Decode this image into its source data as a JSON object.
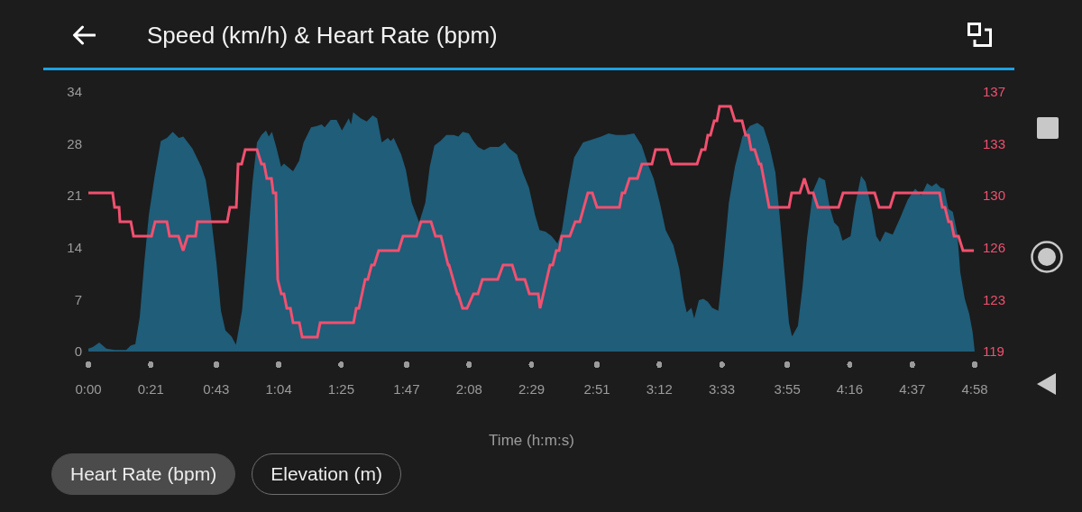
{
  "chart_data": {
    "type": "area",
    "title": "Speed (km/h) & Heart Rate (bpm)",
    "xlabel": "Time (h:m:s)",
    "xlim": [
      0,
      4.9667
    ],
    "xticks": [
      {
        "value": 0,
        "label": "0:00"
      },
      {
        "value": 0.35,
        "label": "0:21"
      },
      {
        "value": 0.7167,
        "label": "0:43"
      },
      {
        "value": 1.0667,
        "label": "1:04"
      },
      {
        "value": 1.4167,
        "label": "1:25"
      },
      {
        "value": 1.7833,
        "label": "1:47"
      },
      {
        "value": 2.1333,
        "label": "2:08"
      },
      {
        "value": 2.4833,
        "label": "2:29"
      },
      {
        "value": 2.85,
        "label": "2:51"
      },
      {
        "value": 3.2,
        "label": "3:12"
      },
      {
        "value": 3.55,
        "label": "3:33"
      },
      {
        "value": 3.9167,
        "label": "3:55"
      },
      {
        "value": 4.2667,
        "label": "4:16"
      },
      {
        "value": 4.6167,
        "label": "4:37"
      },
      {
        "value": 4.9667,
        "label": "4:58"
      }
    ],
    "ylim": [
      0,
      34.4
    ],
    "yticks": [
      0,
      {
        "value": 6.88,
        "label": "7"
      },
      {
        "value": 13.76,
        "label": "14"
      },
      {
        "value": 20.64,
        "label": "21"
      },
      {
        "value": 27.52,
        "label": "28"
      },
      {
        "value": 34.4,
        "label": "34"
      }
    ],
    "y2lim": [
      119,
      137
    ],
    "y2ticks": [
      119,
      {
        "value": 122.6,
        "label": "123"
      },
      {
        "value": 126.2,
        "label": "126"
      },
      {
        "value": 129.8,
        "label": "130"
      },
      {
        "value": 133.4,
        "label": "133"
      },
      137
    ],
    "annotations": [
      "Heart Rate (bpm)",
      "Elevation (m)"
    ],
    "series": [
      {
        "color": "#1f5d79",
        "x": [
          0,
          0.025,
          0.061,
          0.101,
          0.147,
          0.212,
          0.238,
          0.263,
          0.288,
          0.313,
          0.339,
          0.372,
          0.406,
          0.44,
          0.473,
          0.507,
          0.532,
          0.583,
          0.633,
          0.658,
          0.684,
          0.718,
          0.743,
          0.768,
          0.802,
          0.827,
          0.861,
          0.886,
          0.92,
          0.945,
          0.97,
          0.995,
          1.011,
          1.029,
          1.055,
          1.08,
          1.096,
          1.147,
          1.181,
          1.206,
          1.248,
          1.282,
          1.307,
          1.324,
          1.358,
          1.391,
          1.421,
          1.459,
          1.472,
          1.484,
          1.526,
          1.56,
          1.593,
          1.618,
          1.644,
          1.678,
          1.694,
          1.711,
          1.753,
          1.779,
          1.812,
          1.854,
          1.888,
          1.913,
          1.939,
          1.972,
          2.006,
          2.048,
          2.073,
          2.098,
          2.132,
          2.158,
          2.183,
          2.217,
          2.25,
          2.301,
          2.334,
          2.36,
          2.402,
          2.435,
          2.469,
          2.503,
          2.528,
          2.562,
          2.596,
          2.629,
          2.654,
          2.688,
          2.722,
          2.772,
          2.823,
          2.873,
          2.915,
          2.957,
          3.008,
          3.058,
          3.101,
          3.134,
          3.168,
          3.202,
          3.235,
          3.278,
          3.311,
          3.336,
          3.353,
          3.379,
          3.395,
          3.421,
          3.446,
          3.471,
          3.496,
          3.53,
          3.556,
          3.589,
          3.623,
          3.665,
          3.707,
          3.749,
          3.783,
          3.816,
          3.85,
          3.875,
          3.901,
          3.926,
          3.943,
          3.976,
          4.002,
          4.027,
          4.061,
          4.094,
          4.128,
          4.153,
          4.179,
          4.204,
          4.226,
          4.271,
          4.296,
          4.33,
          4.355,
          4.389,
          4.415,
          4.436,
          4.465,
          4.507,
          4.549,
          4.591,
          4.633,
          4.667,
          4.7,
          4.726,
          4.751,
          4.776,
          4.796,
          4.819,
          4.844,
          4.869,
          4.886,
          4.911,
          4.936,
          4.955,
          4.966
        ],
        "values": [
          0.4,
          0.6,
          1.2,
          0.4,
          0.2,
          0.2,
          0.8,
          1.0,
          4.6,
          11.7,
          18.1,
          23.3,
          27.9,
          28.3,
          29.1,
          28.3,
          28.5,
          26.9,
          24.5,
          22.7,
          18.5,
          11.7,
          5.4,
          2.8,
          2.0,
          0.9,
          5.4,
          12.5,
          22.5,
          27.7,
          28.7,
          29.3,
          28.5,
          29.1,
          26.9,
          24.5,
          24.9,
          23.9,
          25.3,
          27.7,
          29.7,
          29.9,
          30.1,
          29.7,
          30.7,
          30.7,
          29.3,
          30.9,
          30.1,
          31.7,
          30.9,
          30.5,
          31.3,
          30.9,
          27.7,
          28.3,
          27.9,
          28.3,
          26.1,
          24.1,
          19.7,
          17.1,
          19.7,
          24.5,
          27.3,
          27.9,
          28.7,
          28.7,
          28.5,
          29.1,
          28.9,
          27.9,
          27.1,
          26.7,
          27.1,
          27.1,
          27.7,
          26.9,
          26.1,
          23.7,
          21.7,
          18.1,
          16.1,
          15.9,
          15.3,
          14.3,
          16.1,
          21.3,
          25.7,
          27.7,
          28.1,
          28.5,
          28.9,
          28.7,
          28.7,
          28.9,
          27.3,
          24.9,
          22.9,
          19.7,
          16.1,
          14.1,
          11.0,
          7.0,
          5.2,
          5.8,
          4.4,
          6.8,
          7.0,
          6.6,
          5.8,
          5.4,
          11.3,
          19.7,
          24.5,
          28.5,
          29.9,
          30.3,
          29.7,
          27.3,
          23.7,
          17.7,
          10.5,
          3.8,
          2.0,
          3.4,
          8.6,
          15.0,
          21.3,
          23.1,
          22.7,
          19.3,
          17.1,
          16.5,
          14.7,
          15.3,
          19.3,
          23.3,
          22.5,
          18.9,
          15.3,
          14.5,
          15.9,
          15.5,
          17.7,
          20.1,
          21.6,
          20.7,
          22.3,
          21.9,
          22.3,
          21.7,
          21.6,
          18.9,
          18.5,
          15.7,
          10.5,
          7.0,
          5.0,
          2.6,
          0.2
        ]
      },
      {
        "type": "line",
        "axis": "y2",
        "color": "#f2506f",
        "x": [
          0,
          0.136,
          0.147,
          0.172,
          0.177,
          0.238,
          0.253,
          0.354,
          0.374,
          0.44,
          0.455,
          0.505,
          0.531,
          0.556,
          0.601,
          0.611,
          0.778,
          0.793,
          0.829,
          0.839,
          0.859,
          0.879,
          0.945,
          0.97,
          0.985,
          1.0,
          1.026,
          1.036,
          1.051,
          1.061,
          1.081,
          1.096,
          1.112,
          1.132,
          1.147,
          1.182,
          1.198,
          1.283,
          1.299,
          1.486,
          1.501,
          1.516,
          1.551,
          1.566,
          1.587,
          1.602,
          1.627,
          1.738,
          1.763,
          1.839,
          1.864,
          1.92,
          1.945,
          1.976,
          2.016,
          2.021,
          2.067,
          2.072,
          2.097,
          2.122,
          2.158,
          2.183,
          2.208,
          2.294,
          2.324,
          2.375,
          2.4,
          2.446,
          2.471,
          2.521,
          2.531,
          2.587,
          2.602,
          2.622,
          2.638,
          2.653,
          2.698,
          2.728,
          2.754,
          2.799,
          2.824,
          2.85,
          2.976,
          2.991,
          3.006,
          3.032,
          3.077,
          3.102,
          3.158,
          3.178,
          3.244,
          3.269,
          3.411,
          3.436,
          3.456,
          3.471,
          3.486,
          3.507,
          3.522,
          3.537,
          3.598,
          3.623,
          3.663,
          3.683,
          3.699,
          3.714,
          3.734,
          3.759,
          3.769,
          3.815,
          3.926,
          3.941,
          3.987,
          4.012,
          4.037,
          4.062,
          4.088,
          4.204,
          4.229,
          4.406,
          4.431,
          4.492,
          4.517,
          4.77,
          4.785,
          4.8,
          4.82,
          4.835,
          4.851,
          4.876,
          4.901,
          4.962
        ],
        "values": [
          130,
          130,
          129,
          129,
          128,
          128,
          127,
          127,
          128,
          128,
          127,
          127,
          126,
          127,
          127,
          128,
          128,
          129,
          129,
          132,
          132,
          133,
          133,
          132,
          132,
          131,
          131,
          130,
          130,
          124,
          123,
          123,
          122,
          122,
          121,
          121,
          120,
          120,
          121,
          121,
          122,
          122,
          124,
          124,
          125,
          125,
          126,
          126,
          127,
          127,
          128,
          128,
          127,
          127,
          125,
          125,
          123,
          123,
          122,
          122,
          123,
          123,
          124,
          124,
          125,
          125,
          124,
          124,
          123,
          123,
          122,
          125,
          125,
          126,
          126,
          127,
          127,
          128,
          128,
          130,
          130,
          129,
          129,
          130,
          130,
          131,
          131,
          132,
          132,
          133,
          133,
          132,
          132,
          133,
          133,
          134,
          134,
          135,
          135,
          136,
          136,
          135,
          135,
          134,
          134,
          133,
          133,
          132,
          132,
          129,
          129,
          130,
          130,
          131,
          130,
          130,
          129,
          129,
          130,
          130,
          129,
          129,
          130,
          130,
          129,
          129,
          128,
          128,
          127,
          127,
          126,
          126
        ]
      }
    ]
  }
}
